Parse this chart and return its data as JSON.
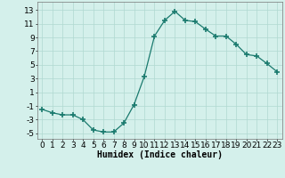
{
  "x": [
    0,
    1,
    2,
    3,
    4,
    5,
    6,
    7,
    8,
    9,
    10,
    11,
    12,
    13,
    14,
    15,
    16,
    17,
    18,
    19,
    20,
    21,
    22,
    23
  ],
  "y": [
    -1.5,
    -2.0,
    -2.3,
    -2.3,
    -3.0,
    -4.5,
    -4.8,
    -4.8,
    -3.5,
    -0.8,
    3.3,
    9.2,
    11.5,
    12.8,
    11.5,
    11.3,
    10.2,
    9.2,
    9.2,
    8.0,
    6.5,
    6.3,
    5.2,
    4.0
  ],
  "line_color": "#1a7a6e",
  "marker": "+",
  "marker_size": 4,
  "bg_color": "#d4f0eb",
  "grid_color": "#b0d8d0",
  "xlabel": "Humidex (Indice chaleur)",
  "xlim": [
    -0.5,
    23.5
  ],
  "ylim": [
    -5.8,
    14.2
  ],
  "yticks": [
    -5,
    -3,
    -1,
    1,
    3,
    5,
    7,
    9,
    11,
    13
  ],
  "xticks": [
    0,
    1,
    2,
    3,
    4,
    5,
    6,
    7,
    8,
    9,
    10,
    11,
    12,
    13,
    14,
    15,
    16,
    17,
    18,
    19,
    20,
    21,
    22,
    23
  ],
  "xlabel_fontsize": 7,
  "tick_fontsize": 6.5
}
